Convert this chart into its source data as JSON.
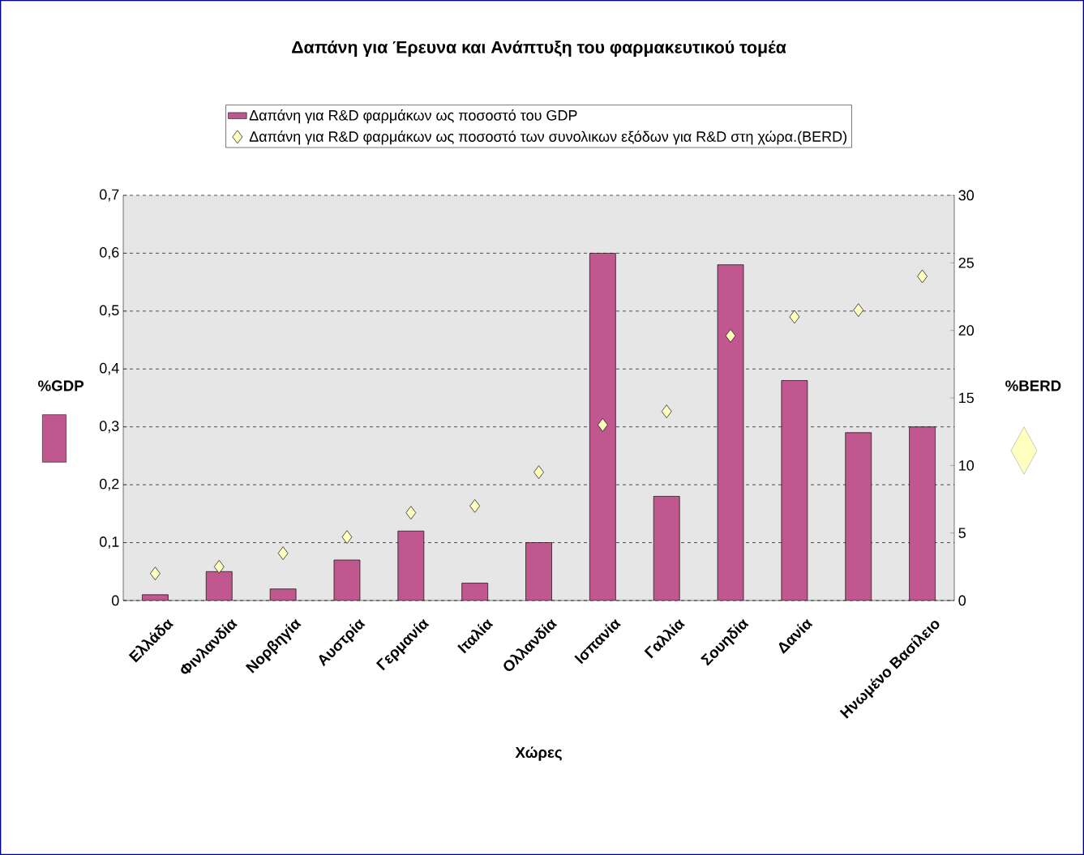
{
  "chart_data": {
    "type": "bar",
    "title": "Δαπάνη για Έρευνα και Ανάπτυξη του φαρμακευτικού τομέα",
    "xlabel": "Χώρες",
    "ylabel": "%GDP",
    "y2label": "%BERD",
    "categories": [
      "Ελλάδα",
      "Φινλανδία",
      "Νορβηγία",
      "Αυστρία",
      "Γερμανία",
      "Ιταλία",
      "Ολλανδία",
      "Ισπανία",
      "Γαλλία",
      "Σουηδία",
      "Δανία",
      null,
      "Ηνωμένο Βασίλειο"
    ],
    "series": [
      {
        "name": "Δαπάνη  για R&D φαρμάκων ως ποσοστό του GDP",
        "color": "#c0578e",
        "values": [
          0.01,
          0.05,
          0.02,
          0.07,
          0.12,
          0.03,
          0.1,
          0.6,
          0.18,
          0.58,
          0.38,
          0.29,
          0.3
        ]
      },
      {
        "name": "Δαπάνη  για R&D φαρμάκων ως ποσοστό των συνολικων εξόδων για R&D στη χώρα.(BERD)",
        "type": "scatter",
        "axis": "y2",
        "marker": "diamond",
        "color": "#ffffc0",
        "values": [
          2.0,
          2.5,
          3.5,
          4.7,
          6.5,
          7.0,
          9.5,
          13.0,
          14.0,
          19.6,
          21.0,
          21.5,
          24.0
        ]
      }
    ],
    "ylim": [
      0,
      0.7
    ],
    "yticks": [
      0,
      {
        "value": 0.1,
        "label": "0,1"
      },
      {
        "value": 0.2,
        "label": "0,2"
      },
      {
        "value": 0.3,
        "label": "0,3"
      },
      {
        "value": 0.4,
        "label": "0,4"
      },
      {
        "value": 0.5,
        "label": "0,5"
      },
      {
        "value": 0.6,
        "label": "0,6"
      },
      {
        "value": 0.7,
        "label": "0,7"
      }
    ],
    "y2lim": [
      0,
      30
    ],
    "y2ticks": [
      0,
      5,
      10,
      15,
      20,
      25,
      30
    ],
    "grid": "y",
    "legend": "top"
  }
}
